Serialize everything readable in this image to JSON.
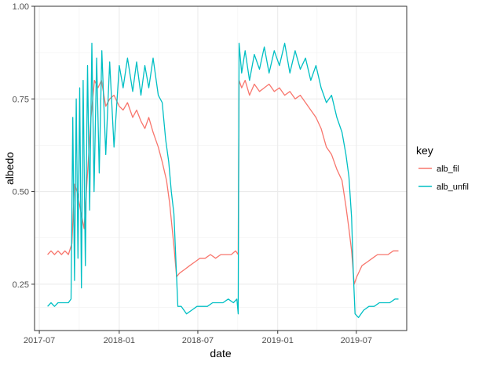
{
  "chart_data": {
    "type": "line",
    "title": "",
    "xlabel": "date",
    "ylabel": "albedo",
    "x_date_range": [
      "2017-06-20",
      "2019-10-25"
    ],
    "ylim": [
      0.125,
      1.0
    ],
    "x_ticks": [
      {
        "date": "2017-07-01",
        "label": "2017-07"
      },
      {
        "date": "2018-01-01",
        "label": "2018-01"
      },
      {
        "date": "2018-07-01",
        "label": "2018-07"
      },
      {
        "date": "2019-01-01",
        "label": "2019-01"
      },
      {
        "date": "2019-07-01",
        "label": "2019-07"
      }
    ],
    "y_ticks": [
      {
        "value": 0.25,
        "label": "0.25"
      },
      {
        "value": 0.5,
        "label": "0.50"
      },
      {
        "value": 0.75,
        "label": "0.75"
      },
      {
        "value": 1.0,
        "label": "1.00"
      }
    ],
    "grid": true,
    "legend": {
      "title": "key",
      "position": "right"
    },
    "series": [
      {
        "name": "alb_fil",
        "color": "#F8766D",
        "points": [
          [
            "2017-07-20",
            0.33
          ],
          [
            "2017-07-28",
            0.34
          ],
          [
            "2017-08-05",
            0.33
          ],
          [
            "2017-08-13",
            0.34
          ],
          [
            "2017-08-21",
            0.33
          ],
          [
            "2017-08-29",
            0.34
          ],
          [
            "2017-09-06",
            0.33
          ],
          [
            "2017-09-14",
            0.36
          ],
          [
            "2017-09-20",
            0.52
          ],
          [
            "2017-09-26",
            0.5
          ],
          [
            "2017-10-04",
            0.45
          ],
          [
            "2017-10-12",
            0.4
          ],
          [
            "2017-10-20",
            0.55
          ],
          [
            "2017-10-28",
            0.7
          ],
          [
            "2017-11-05",
            0.8
          ],
          [
            "2017-11-13",
            0.78
          ],
          [
            "2017-11-21",
            0.8
          ],
          [
            "2017-12-01",
            0.73
          ],
          [
            "2017-12-10",
            0.75
          ],
          [
            "2017-12-20",
            0.76
          ],
          [
            "2018-01-01",
            0.73
          ],
          [
            "2018-01-10",
            0.72
          ],
          [
            "2018-01-20",
            0.74
          ],
          [
            "2018-02-01",
            0.7
          ],
          [
            "2018-02-10",
            0.72
          ],
          [
            "2018-02-20",
            0.69
          ],
          [
            "2018-03-01",
            0.67
          ],
          [
            "2018-03-10",
            0.7
          ],
          [
            "2018-03-20",
            0.66
          ],
          [
            "2018-04-01",
            0.62
          ],
          [
            "2018-04-10",
            0.58
          ],
          [
            "2018-04-20",
            0.53
          ],
          [
            "2018-04-27",
            0.47
          ],
          [
            "2018-05-03",
            0.4
          ],
          [
            "2018-05-08",
            0.34
          ],
          [
            "2018-05-13",
            0.27
          ],
          [
            "2018-05-20",
            0.28
          ],
          [
            "2018-06-01",
            0.29
          ],
          [
            "2018-06-12",
            0.3
          ],
          [
            "2018-06-24",
            0.31
          ],
          [
            "2018-07-06",
            0.32
          ],
          [
            "2018-07-18",
            0.32
          ],
          [
            "2018-07-30",
            0.33
          ],
          [
            "2018-08-11",
            0.32
          ],
          [
            "2018-08-23",
            0.33
          ],
          [
            "2018-09-04",
            0.33
          ],
          [
            "2018-09-16",
            0.33
          ],
          [
            "2018-09-26",
            0.34
          ],
          [
            "2018-10-02",
            0.33
          ],
          [
            "2018-10-04",
            0.8
          ],
          [
            "2018-10-10",
            0.78
          ],
          [
            "2018-10-18",
            0.8
          ],
          [
            "2018-10-28",
            0.76
          ],
          [
            "2018-11-08",
            0.79
          ],
          [
            "2018-11-20",
            0.77
          ],
          [
            "2018-12-01",
            0.78
          ],
          [
            "2018-12-12",
            0.79
          ],
          [
            "2018-12-24",
            0.77
          ],
          [
            "2019-01-05",
            0.78
          ],
          [
            "2019-01-17",
            0.76
          ],
          [
            "2019-01-29",
            0.77
          ],
          [
            "2019-02-10",
            0.75
          ],
          [
            "2019-02-22",
            0.76
          ],
          [
            "2019-03-06",
            0.74
          ],
          [
            "2019-03-18",
            0.72
          ],
          [
            "2019-03-30",
            0.7
          ],
          [
            "2019-04-11",
            0.67
          ],
          [
            "2019-04-23",
            0.62
          ],
          [
            "2019-05-05",
            0.6
          ],
          [
            "2019-05-17",
            0.56
          ],
          [
            "2019-05-29",
            0.53
          ],
          [
            "2019-06-07",
            0.46
          ],
          [
            "2019-06-14",
            0.4
          ],
          [
            "2019-06-20",
            0.34
          ],
          [
            "2019-06-26",
            0.25
          ],
          [
            "2019-07-02",
            0.27
          ],
          [
            "2019-07-14",
            0.3
          ],
          [
            "2019-07-26",
            0.31
          ],
          [
            "2019-08-07",
            0.32
          ],
          [
            "2019-08-19",
            0.33
          ],
          [
            "2019-08-31",
            0.33
          ],
          [
            "2019-09-12",
            0.33
          ],
          [
            "2019-09-24",
            0.34
          ],
          [
            "2019-10-06",
            0.34
          ]
        ]
      },
      {
        "name": "alb_unfil",
        "color": "#00BFC4",
        "points": [
          [
            "2017-07-20",
            0.19
          ],
          [
            "2017-07-28",
            0.2
          ],
          [
            "2017-08-05",
            0.19
          ],
          [
            "2017-08-13",
            0.2
          ],
          [
            "2017-08-21",
            0.2
          ],
          [
            "2017-08-29",
            0.2
          ],
          [
            "2017-09-06",
            0.2
          ],
          [
            "2017-09-12",
            0.21
          ],
          [
            "2017-09-16",
            0.7
          ],
          [
            "2017-09-20",
            0.26
          ],
          [
            "2017-09-24",
            0.75
          ],
          [
            "2017-09-28",
            0.32
          ],
          [
            "2017-10-02",
            0.78
          ],
          [
            "2017-10-06",
            0.24
          ],
          [
            "2017-10-10",
            0.8
          ],
          [
            "2017-10-15",
            0.3
          ],
          [
            "2017-10-20",
            0.84
          ],
          [
            "2017-10-25",
            0.45
          ],
          [
            "2017-10-30",
            0.9
          ],
          [
            "2017-11-04",
            0.5
          ],
          [
            "2017-11-10",
            0.86
          ],
          [
            "2017-11-16",
            0.55
          ],
          [
            "2017-11-22",
            0.88
          ],
          [
            "2017-12-01",
            0.6
          ],
          [
            "2017-12-10",
            0.85
          ],
          [
            "2017-12-20",
            0.62
          ],
          [
            "2018-01-01",
            0.84
          ],
          [
            "2018-01-10",
            0.78
          ],
          [
            "2018-01-20",
            0.86
          ],
          [
            "2018-02-01",
            0.77
          ],
          [
            "2018-02-10",
            0.85
          ],
          [
            "2018-02-20",
            0.76
          ],
          [
            "2018-03-01",
            0.84
          ],
          [
            "2018-03-10",
            0.78
          ],
          [
            "2018-03-20",
            0.86
          ],
          [
            "2018-04-01",
            0.76
          ],
          [
            "2018-04-10",
            0.74
          ],
          [
            "2018-04-18",
            0.64
          ],
          [
            "2018-04-25",
            0.58
          ],
          [
            "2018-05-01",
            0.5
          ],
          [
            "2018-05-07",
            0.44
          ],
          [
            "2018-05-12",
            0.3
          ],
          [
            "2018-05-16",
            0.19
          ],
          [
            "2018-05-24",
            0.19
          ],
          [
            "2018-06-05",
            0.17
          ],
          [
            "2018-06-17",
            0.18
          ],
          [
            "2018-06-29",
            0.19
          ],
          [
            "2018-07-11",
            0.19
          ],
          [
            "2018-07-23",
            0.19
          ],
          [
            "2018-08-04",
            0.2
          ],
          [
            "2018-08-16",
            0.2
          ],
          [
            "2018-08-28",
            0.2
          ],
          [
            "2018-09-09",
            0.21
          ],
          [
            "2018-09-21",
            0.2
          ],
          [
            "2018-09-29",
            0.21
          ],
          [
            "2018-10-02",
            0.17
          ],
          [
            "2018-10-04",
            0.9
          ],
          [
            "2018-10-10",
            0.82
          ],
          [
            "2018-10-18",
            0.88
          ],
          [
            "2018-10-28",
            0.8
          ],
          [
            "2018-11-08",
            0.87
          ],
          [
            "2018-11-20",
            0.83
          ],
          [
            "2018-12-01",
            0.89
          ],
          [
            "2018-12-12",
            0.82
          ],
          [
            "2018-12-24",
            0.88
          ],
          [
            "2019-01-05",
            0.84
          ],
          [
            "2019-01-17",
            0.9
          ],
          [
            "2019-01-29",
            0.82
          ],
          [
            "2019-02-10",
            0.88
          ],
          [
            "2019-02-22",
            0.83
          ],
          [
            "2019-03-06",
            0.86
          ],
          [
            "2019-03-18",
            0.8
          ],
          [
            "2019-03-30",
            0.84
          ],
          [
            "2019-04-11",
            0.78
          ],
          [
            "2019-04-23",
            0.74
          ],
          [
            "2019-05-05",
            0.76
          ],
          [
            "2019-05-17",
            0.7
          ],
          [
            "2019-05-29",
            0.66
          ],
          [
            "2019-06-07",
            0.6
          ],
          [
            "2019-06-14",
            0.54
          ],
          [
            "2019-06-20",
            0.43
          ],
          [
            "2019-06-24",
            0.28
          ],
          [
            "2019-06-28",
            0.17
          ],
          [
            "2019-07-06",
            0.16
          ],
          [
            "2019-07-18",
            0.18
          ],
          [
            "2019-07-30",
            0.19
          ],
          [
            "2019-08-11",
            0.19
          ],
          [
            "2019-08-23",
            0.2
          ],
          [
            "2019-09-04",
            0.2
          ],
          [
            "2019-09-16",
            0.2
          ],
          [
            "2019-09-28",
            0.21
          ],
          [
            "2019-10-06",
            0.21
          ]
        ]
      }
    ]
  }
}
